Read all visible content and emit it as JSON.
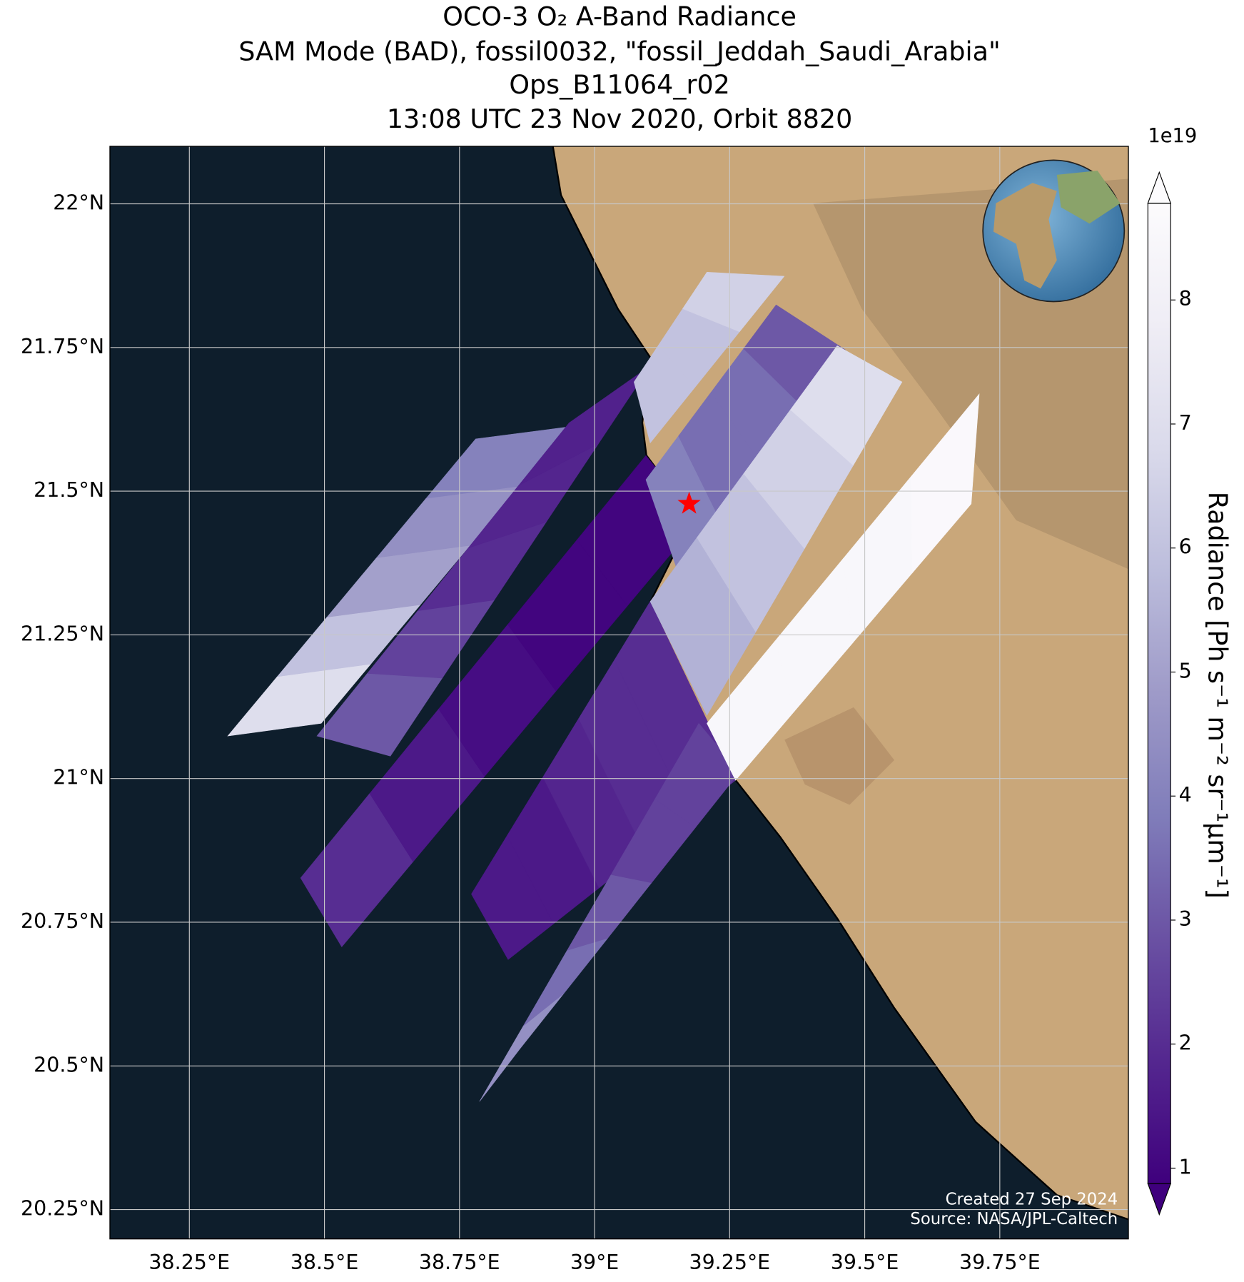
{
  "chart_data": {
    "type": "swath-map",
    "title": [
      "OCO-3 O₂ A-Band Radiance",
      "SAM Mode (BAD), fossil0032, \"fossil_Jeddah_Saudi_Arabia\"",
      "Ops_B11064_r02",
      "13:08 UTC 23 Nov 2020, Orbit 8820"
    ],
    "xlim": [
      38.103,
      39.988
    ],
    "ylim": [
      20.199,
      22.1
    ],
    "xticks": [
      {
        "value": 38.25,
        "label": "38.25°E"
      },
      {
        "value": 38.5,
        "label": "38.5°E"
      },
      {
        "value": 38.75,
        "label": "38.75°E"
      },
      {
        "value": 39,
        "label": "39°E"
      },
      {
        "value": 39.25,
        "label": "39.25°E"
      },
      {
        "value": 39.5,
        "label": "39.5°E"
      },
      {
        "value": 39.75,
        "label": "39.75°E"
      }
    ],
    "yticks": [
      {
        "value": 20.25,
        "label": "20.25°N"
      },
      {
        "value": 20.5,
        "label": "20.5°N"
      },
      {
        "value": 20.75,
        "label": "20.75°N"
      },
      {
        "value": 21,
        "label": "21°N"
      },
      {
        "value": 21.25,
        "label": "21.25°N"
      },
      {
        "value": 21.5,
        "label": "21.5°N"
      },
      {
        "value": 21.75,
        "label": "21.75°N"
      },
      {
        "value": 22,
        "label": "22°N"
      }
    ],
    "grid": true,
    "colorbar": {
      "label": "Radiance [Ph s⁻¹ m⁻² sr⁻¹μm⁻¹]",
      "offset_label": "1e19",
      "clim": [
        0.875,
        8.78
      ],
      "ticks": [
        1,
        2,
        3,
        4,
        5,
        6,
        7,
        8
      ],
      "colormap": "Purples",
      "colors": [
        "#3f007d",
        "#54278f",
        "#6a51a3",
        "#807dba",
        "#9e9ac8",
        "#bcbddc",
        "#dadaeb",
        "#efedf5",
        "#fcfbfd"
      ]
    },
    "swaths": [
      {
        "corners": [
          [
            38.321,
            21.074
          ],
          [
            38.78,
            21.591
          ],
          [
            38.953,
            21.612
          ],
          [
            38.494,
            21.096
          ]
        ],
        "values": [
          7,
          6,
          5,
          4.5,
          4
        ]
      },
      {
        "corners": [
          [
            38.486,
            21.074
          ],
          [
            38.953,
            21.619
          ],
          [
            39.103,
            21.718
          ],
          [
            38.622,
            21.039
          ]
        ],
        "values": [
          3,
          2.5,
          2,
          1.8,
          1.7
        ]
      },
      {
        "corners": [
          [
            38.456,
            20.827
          ],
          [
            39.095,
            21.562
          ],
          [
            39.193,
            21.449
          ],
          [
            38.532,
            20.707
          ]
        ],
        "values": [
          2,
          1.5,
          1.2,
          1,
          1
        ]
      },
      {
        "corners": [
          [
            38.772,
            20.799
          ],
          [
            39.103,
            21.308
          ],
          [
            39.261,
            20.997
          ],
          [
            38.84,
            20.685
          ]
        ],
        "values": [
          1.5,
          1.5,
          1.8,
          2,
          2
        ]
      },
      {
        "corners": [
          [
            38.787,
            20.438
          ],
          [
            39.193,
            21.096
          ],
          [
            39.268,
            21.011
          ],
          [
            38.862,
            20.53
          ]
        ],
        "values": [
          4.5,
          3.5,
          3,
          2.5,
          2.5
        ]
      },
      {
        "corners": [
          [
            39.073,
            21.69
          ],
          [
            39.208,
            21.881
          ],
          [
            39.351,
            21.874
          ],
          [
            39.103,
            21.584
          ]
        ],
        "values": [
          6,
          6,
          6.5
        ]
      },
      {
        "corners": [
          [
            39.095,
            21.52
          ],
          [
            39.336,
            21.824
          ],
          [
            39.464,
            21.746
          ],
          [
            39.163,
            21.336
          ]
        ],
        "values": [
          4,
          3.5,
          3.5,
          3
        ]
      },
      {
        "corners": [
          [
            39.103,
            21.308
          ],
          [
            39.449,
            21.753
          ],
          [
            39.569,
            21.69
          ],
          [
            39.208,
            21.11
          ]
        ],
        "values": [
          5.5,
          6,
          6.5,
          7
        ]
      },
      {
        "corners": [
          [
            39.208,
            21.096
          ],
          [
            39.712,
            21.669
          ],
          [
            39.697,
            21.478
          ],
          [
            39.261,
            20.997
          ]
        ],
        "values": [
          8.5,
          8.5,
          8.5,
          8.6
        ]
      }
    ],
    "site": {
      "lon": 39.175,
      "lat": 21.478,
      "color": "#ff0000"
    },
    "credits": [
      "Created 27 Sep 2024",
      "Source: NASA/JPL-Caltech"
    ]
  }
}
